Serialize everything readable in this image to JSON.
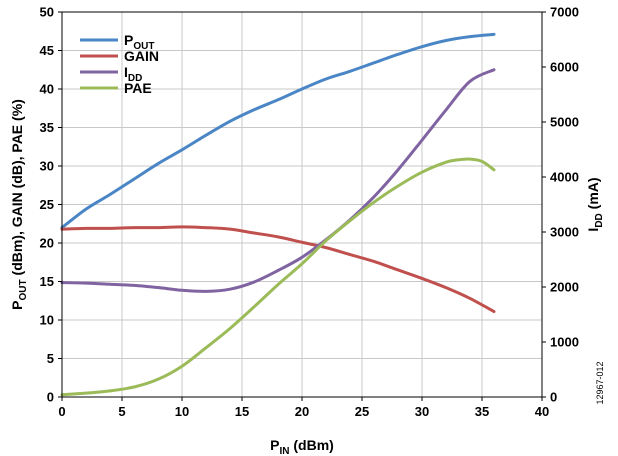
{
  "chart_data": {
    "type": "line",
    "x_label": {
      "main": "P",
      "sub": "IN",
      "suffix": " (dBm)"
    },
    "y_left_label": {
      "parts": [
        {
          "text": "P"
        },
        {
          "text": "OUT",
          "sub": true
        },
        {
          "text": " (dBm), GAIN (dB), PAE (%)"
        }
      ]
    },
    "y_right_label": {
      "main": "I",
      "sub": "DD",
      "suffix": " (mA)"
    },
    "figure_id": "12967-012",
    "xlim": [
      0,
      40
    ],
    "ylim_left": [
      0,
      50
    ],
    "ylim_right": [
      0,
      7000
    ],
    "x_ticks": [
      0,
      5,
      10,
      15,
      20,
      25,
      30,
      35,
      40
    ],
    "y_left_ticks": [
      0,
      5,
      10,
      15,
      20,
      25,
      30,
      35,
      40,
      45,
      50
    ],
    "y_right_ticks": [
      0,
      1000,
      2000,
      3000,
      4000,
      5000,
      6000,
      7000
    ],
    "legend_position": "top-left",
    "series": [
      {
        "name": "P",
        "name_sub": "OUT",
        "axis": "left",
        "color": "#4a86c5",
        "x": [
          0,
          2,
          4,
          6,
          8,
          10,
          12,
          14,
          16,
          18,
          20,
          22,
          24,
          26,
          28,
          30,
          32,
          34,
          36
        ],
        "y": [
          22,
          24.4,
          26.3,
          28.3,
          30.3,
          32.1,
          34,
          35.8,
          37.3,
          38.6,
          40,
          41.3,
          42.3,
          43.4,
          44.5,
          45.5,
          46.3,
          46.8,
          47.1
        ]
      },
      {
        "name": "GAIN",
        "axis": "left",
        "color": "#c0504d",
        "x": [
          0,
          2,
          4,
          6,
          8,
          10,
          12,
          14,
          16,
          18,
          20,
          22,
          24,
          26,
          28,
          30,
          32,
          34,
          36
        ],
        "y": [
          21.8,
          21.9,
          21.9,
          22,
          22,
          22.1,
          22,
          21.8,
          21.3,
          20.8,
          20.1,
          19.4,
          18.5,
          17.6,
          16.5,
          15.4,
          14.2,
          12.8,
          11.1
        ]
      },
      {
        "name": "I",
        "name_sub": "DD",
        "axis": "right",
        "color": "#8064a2",
        "x": [
          0,
          2,
          4,
          6,
          8,
          10,
          12,
          14,
          16,
          18,
          20,
          22,
          24,
          26,
          28,
          30,
          32,
          34,
          36
        ],
        "y": [
          2080,
          2070,
          2050,
          2030,
          1990,
          1940,
          1920,
          1960,
          2090,
          2300,
          2540,
          2860,
          3220,
          3640,
          4130,
          4670,
          5220,
          5740,
          5950
        ]
      },
      {
        "name": "PAE",
        "axis": "left",
        "color": "#9bbb59",
        "x": [
          0,
          2,
          4,
          6,
          8,
          10,
          12,
          14,
          16,
          18,
          20,
          22,
          24,
          26,
          28,
          30,
          32,
          33,
          34,
          35,
          36
        ],
        "y": [
          0.3,
          0.5,
          0.8,
          1.3,
          2.3,
          4,
          6.4,
          8.9,
          11.7,
          14.6,
          17.3,
          20.3,
          22.9,
          25.3,
          27.4,
          29.2,
          30.5,
          30.8,
          30.9,
          30.6,
          29.5
        ]
      }
    ]
  }
}
